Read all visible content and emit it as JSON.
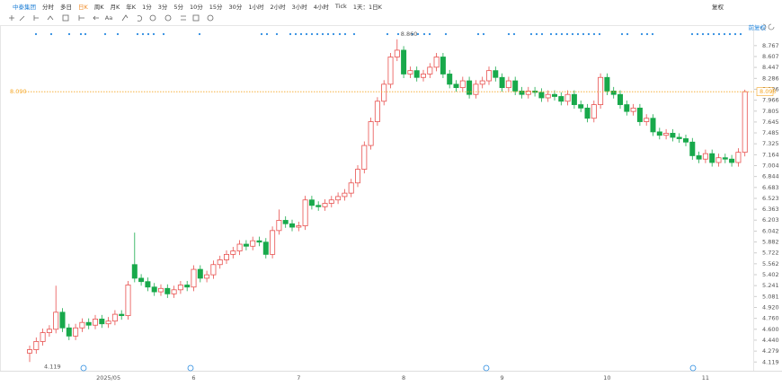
{
  "toolbar": {
    "symbol": "中泰集团",
    "periods": [
      "分时",
      "多日",
      "日K",
      "周K",
      "月K",
      "年K",
      "1分",
      "3分",
      "5分",
      "10分",
      "15分",
      "30分",
      "1小时",
      "2小时",
      "3小时",
      "4小时",
      "Tick",
      "1天：1日K"
    ],
    "active_period": 2,
    "adjust": "复权",
    "font_button": "Aa"
  },
  "chart_data": {
    "type": "candlestick",
    "adjust_label": "前复权",
    "high_label": "8.860",
    "low_label": "4.119",
    "last_price": {
      "value": 8.09,
      "label": "8.090"
    },
    "up_color": "#e8514f",
    "down_color": "#18a94b",
    "price_color": "#f5a623",
    "ylim": [
      4.03,
      8.91
    ],
    "yticks": [
      8.767,
      8.607,
      8.447,
      8.286,
      8.126,
      7.966,
      7.805,
      7.645,
      7.485,
      7.325,
      7.164,
      7.004,
      6.844,
      6.683,
      6.523,
      6.363,
      6.203,
      6.042,
      5.882,
      5.722,
      5.562,
      5.402,
      5.241,
      5.081,
      {
        "value": 4.92,
        "label": "4.920"
      },
      {
        "value": 4.76,
        "label": "4.760"
      },
      {
        "value": 4.6,
        "label": "4.600"
      },
      {
        "value": 4.44,
        "label": "4.440"
      },
      4.279,
      4.119
    ],
    "categories": [
      null,
      null,
      null,
      null,
      null,
      null,
      null,
      null,
      null,
      null,
      null,
      null,
      "2025/05",
      null,
      null,
      null,
      null,
      null,
      null,
      null,
      null,
      null,
      null,
      null,
      null,
      "6",
      null,
      null,
      null,
      null,
      null,
      null,
      null,
      null,
      null,
      null,
      null,
      null,
      null,
      null,
      null,
      "7",
      null,
      null,
      null,
      null,
      null,
      null,
      null,
      null,
      null,
      null,
      null,
      null,
      null,
      null,
      null,
      "8",
      null,
      null,
      null,
      null,
      null,
      null,
      null,
      null,
      null,
      null,
      null,
      null,
      null,
      null,
      "9",
      null,
      null,
      null,
      null,
      null,
      null,
      null,
      null,
      null,
      null,
      null,
      null,
      null,
      null,
      null,
      "10",
      null,
      null,
      null,
      null,
      null,
      null,
      null,
      null,
      null,
      null,
      null,
      null,
      null,
      null,
      "11",
      null,
      null,
      null,
      null,
      null,
      null
    ],
    "open": [
      4.25,
      4.3,
      4.42,
      4.55,
      4.6,
      4.85,
      4.62,
      4.5,
      4.62,
      4.7,
      4.66,
      4.75,
      4.68,
      4.72,
      4.82,
      4.8,
      5.55,
      5.35,
      5.3,
      5.22,
      5.15,
      5.2,
      5.12,
      5.18,
      5.25,
      5.22,
      5.48,
      5.35,
      5.4,
      5.55,
      5.62,
      5.7,
      5.75,
      5.85,
      5.82,
      5.9,
      5.88,
      5.7,
      6.05,
      6.2,
      6.15,
      6.1,
      6.12,
      6.5,
      6.42,
      6.4,
      6.45,
      6.5,
      6.55,
      6.6,
      6.75,
      6.95,
      7.3,
      7.65,
      7.95,
      8.2,
      8.6,
      8.7,
      8.35,
      8.4,
      8.3,
      8.35,
      8.45,
      8.6,
      8.35,
      8.2,
      8.15,
      8.25,
      8.05,
      8.2,
      8.25,
      8.4,
      8.3,
      8.15,
      8.25,
      8.1,
      8.05,
      8.1,
      8.08,
      8.0,
      8.05,
      8.02,
      7.95,
      8.05,
      7.9,
      7.85,
      7.7,
      7.9,
      8.3,
      8.1,
      8.05,
      7.9,
      7.8,
      7.85,
      7.65,
      7.7,
      7.5,
      7.45,
      7.48,
      7.42,
      7.4,
      7.35,
      7.15,
      7.1,
      7.18,
      7.05,
      7.12,
      7.1,
      7.05,
      7.2
    ],
    "high": [
      4.36,
      4.48,
      4.61,
      4.66,
      5.24,
      4.91,
      4.68,
      4.68,
      4.76,
      4.76,
      4.81,
      4.81,
      4.78,
      4.88,
      4.88,
      5.31,
      6.02,
      5.41,
      5.36,
      5.28,
      5.26,
      5.26,
      5.24,
      5.31,
      5.31,
      5.54,
      5.54,
      5.46,
      5.61,
      5.68,
      5.76,
      5.81,
      5.91,
      5.91,
      5.96,
      5.96,
      5.94,
      6.11,
      6.36,
      6.26,
      6.21,
      6.18,
      6.56,
      6.56,
      6.48,
      6.51,
      6.56,
      6.61,
      6.66,
      6.81,
      7.01,
      7.36,
      7.71,
      8.01,
      8.26,
      8.66,
      8.86,
      8.76,
      8.46,
      8.46,
      8.41,
      8.51,
      8.66,
      8.66,
      8.41,
      8.26,
      8.31,
      8.31,
      8.26,
      8.31,
      8.46,
      8.46,
      8.36,
      8.31,
      8.31,
      8.16,
      8.16,
      8.16,
      8.14,
      8.11,
      8.11,
      8.08,
      8.11,
      8.11,
      7.96,
      7.91,
      7.96,
      8.36,
      8.36,
      8.16,
      8.11,
      7.96,
      7.91,
      7.91,
      7.76,
      7.76,
      7.56,
      7.54,
      7.54,
      7.48,
      7.46,
      7.41,
      7.21,
      7.24,
      7.24,
      7.18,
      7.18,
      7.16,
      7.26,
      8.12
    ],
    "low": [
      4.119,
      4.24,
      4.36,
      4.49,
      4.54,
      4.56,
      4.44,
      4.44,
      4.56,
      4.6,
      4.6,
      4.62,
      4.62,
      4.66,
      4.74,
      4.74,
      5.29,
      5.24,
      5.16,
      5.09,
      5.09,
      5.06,
      5.06,
      5.12,
      5.16,
      5.16,
      5.29,
      5.29,
      5.34,
      5.49,
      5.56,
      5.64,
      5.69,
      5.76,
      5.76,
      5.82,
      5.64,
      5.64,
      5.99,
      6.09,
      6.04,
      6.04,
      6.06,
      6.36,
      6.34,
      6.34,
      6.39,
      6.44,
      6.49,
      6.54,
      6.69,
      6.89,
      7.24,
      7.59,
      7.89,
      8.14,
      8.54,
      8.29,
      8.29,
      8.24,
      8.24,
      8.29,
      8.39,
      8.29,
      8.14,
      8.09,
      8.09,
      7.99,
      7.99,
      8.14,
      8.19,
      8.24,
      8.09,
      8.09,
      8.04,
      7.99,
      7.99,
      8.02,
      7.94,
      7.94,
      7.96,
      7.89,
      7.89,
      7.84,
      7.79,
      7.64,
      7.64,
      7.84,
      8.04,
      7.99,
      7.84,
      7.74,
      7.74,
      7.59,
      7.59,
      7.44,
      7.39,
      7.39,
      7.36,
      7.34,
      7.29,
      7.09,
      7.04,
      7.04,
      6.99,
      6.99,
      7.04,
      6.99,
      6.99,
      7.14
    ],
    "close": [
      4.3,
      4.42,
      4.55,
      4.6,
      4.85,
      4.62,
      4.5,
      4.62,
      4.7,
      4.66,
      4.75,
      4.68,
      4.72,
      4.82,
      4.8,
      5.25,
      5.35,
      5.3,
      5.22,
      5.15,
      5.2,
      5.12,
      5.18,
      5.25,
      5.22,
      5.48,
      5.35,
      5.4,
      5.55,
      5.62,
      5.7,
      5.75,
      5.85,
      5.82,
      5.9,
      5.88,
      5.7,
      6.05,
      6.2,
      6.15,
      6.1,
      6.12,
      6.5,
      6.42,
      6.4,
      6.45,
      6.5,
      6.55,
      6.6,
      6.75,
      6.95,
      7.3,
      7.65,
      7.95,
      8.2,
      8.6,
      8.7,
      8.35,
      8.4,
      8.3,
      8.35,
      8.45,
      8.6,
      8.35,
      8.2,
      8.15,
      8.25,
      8.05,
      8.2,
      8.25,
      8.4,
      8.3,
      8.15,
      8.25,
      8.1,
      8.05,
      8.1,
      8.08,
      8.0,
      8.05,
      8.02,
      7.95,
      8.05,
      7.9,
      7.85,
      7.7,
      7.9,
      8.3,
      8.1,
      8.05,
      7.9,
      7.8,
      7.85,
      7.65,
      7.7,
      7.5,
      7.45,
      7.48,
      7.42,
      7.4,
      7.35,
      7.15,
      7.1,
      7.18,
      7.05,
      7.12,
      7.1,
      7.05,
      7.2,
      8.09
    ]
  }
}
